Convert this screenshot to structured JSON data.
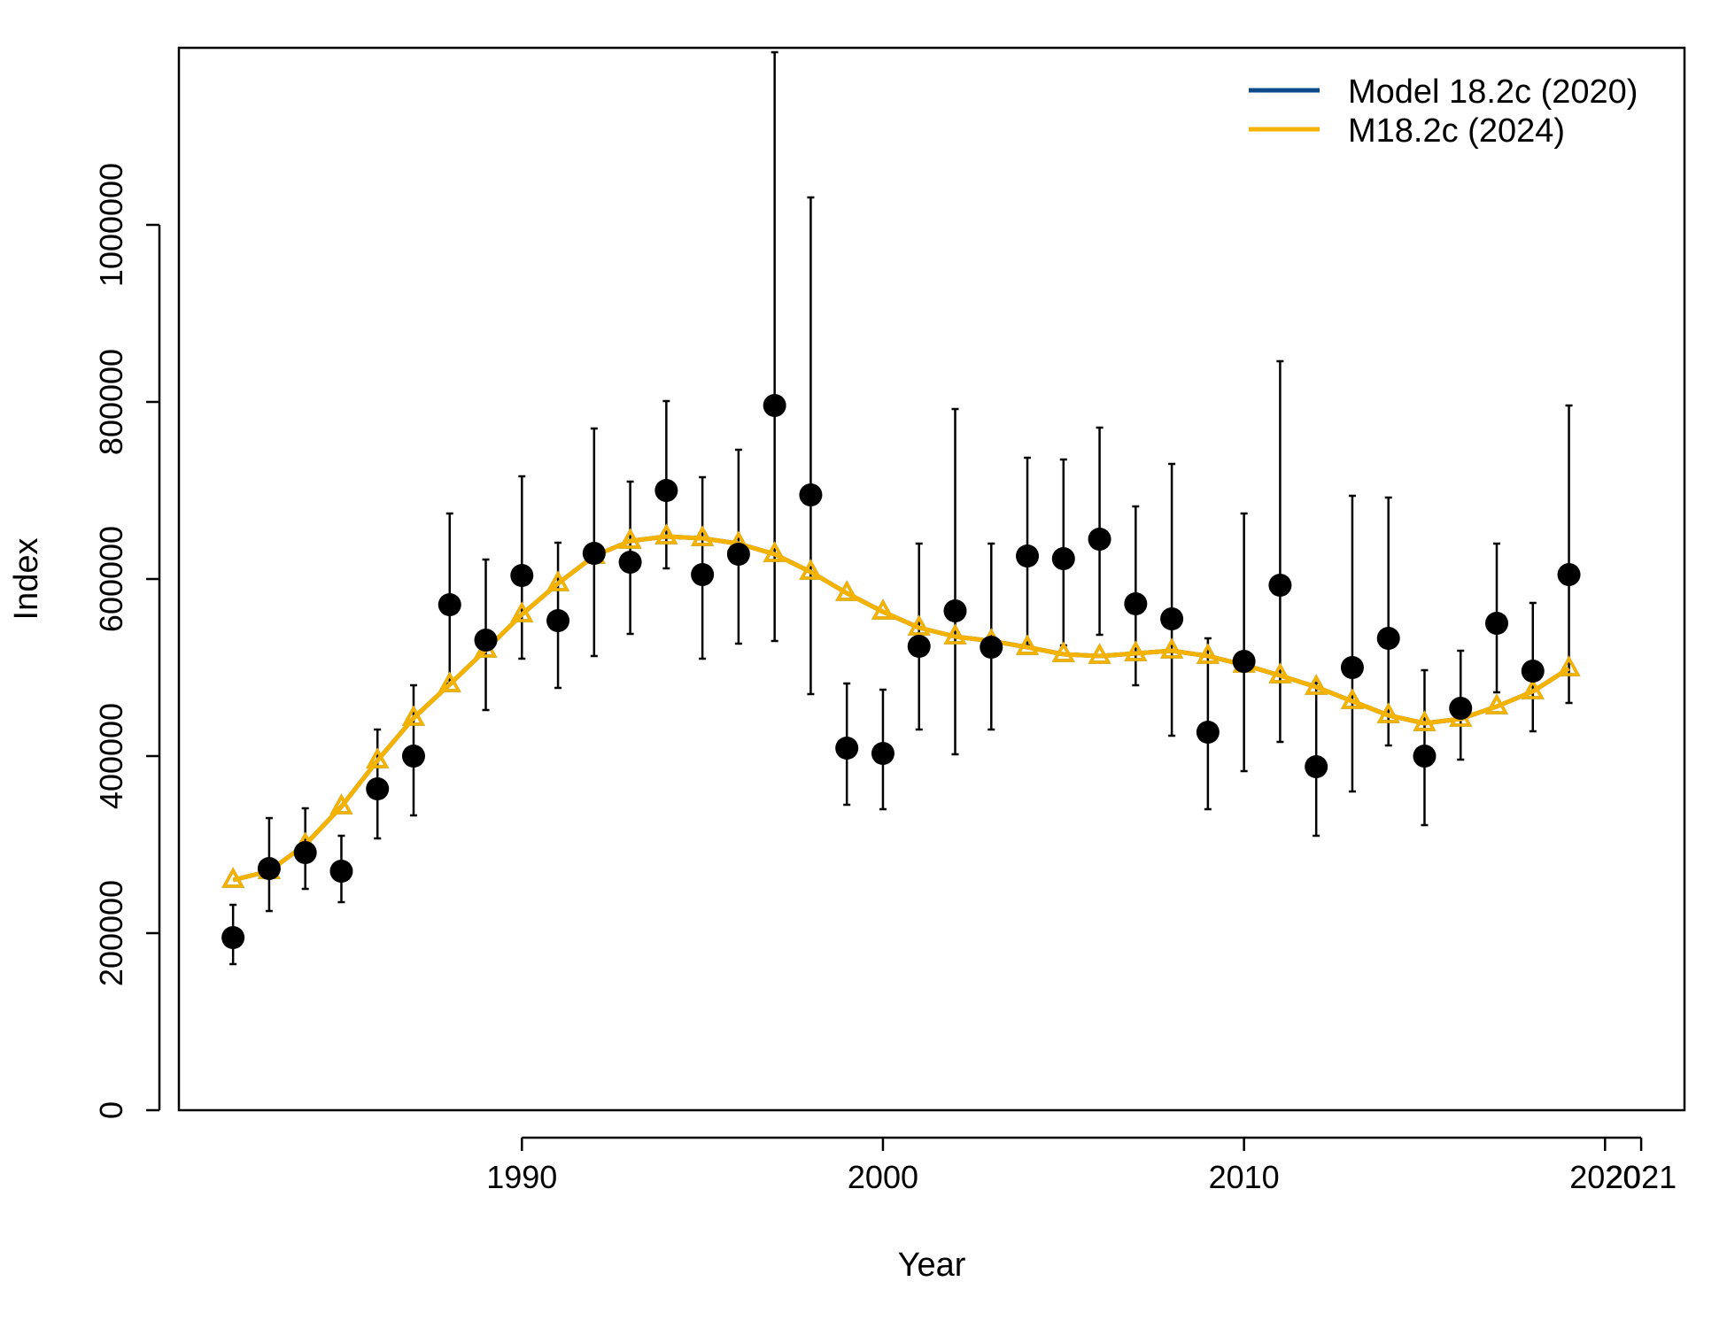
{
  "chart_data": {
    "type": "line",
    "xlabel": "Year",
    "ylabel": "Index",
    "xlim": [
      1980.5,
      2022.2
    ],
    "ylim": [
      0,
      1200000
    ],
    "x_ticks": [
      1990,
      2000,
      2010,
      2020,
      2021
    ],
    "x_tick_labels": [
      "1990",
      "2000",
      "2010",
      "2020",
      "2021"
    ],
    "y_ticks": [
      0,
      200000,
      400000,
      600000,
      800000,
      1000000
    ],
    "y_tick_labels": [
      "0",
      "200000",
      "400000",
      "600000",
      "800000",
      "1000000"
    ],
    "grid": false,
    "legend_position": "top-right",
    "observed": {
      "years": [
        1982,
        1983,
        1984,
        1985,
        1986,
        1987,
        1988,
        1989,
        1990,
        1991,
        1992,
        1993,
        1994,
        1995,
        1996,
        1997,
        1998,
        1999,
        2000,
        2001,
        2002,
        2003,
        2004,
        2005,
        2006,
        2007,
        2008,
        2009,
        2010,
        2011,
        2012,
        2013,
        2014,
        2015,
        2016,
        2017,
        2018,
        2019
      ],
      "values": [
        195000,
        273000,
        291000,
        270000,
        363000,
        400000,
        571000,
        531000,
        604000,
        553000,
        629000,
        619000,
        700000,
        605000,
        628000,
        796000,
        695000,
        409000,
        403000,
        524000,
        564000,
        523000,
        626000,
        623000,
        645000,
        572000,
        555000,
        427000,
        507000,
        593000,
        388000,
        500000,
        533000,
        400000,
        454000,
        550000,
        496000,
        605000
      ],
      "lower": [
        165000,
        225000,
        250000,
        235000,
        307000,
        333000,
        482000,
        452000,
        510000,
        477000,
        513000,
        538000,
        612000,
        510000,
        527000,
        530000,
        470000,
        345000,
        340000,
        430000,
        402000,
        430000,
        525000,
        525000,
        537000,
        480000,
        423000,
        340000,
        383000,
        416000,
        310000,
        360000,
        412000,
        322000,
        396000,
        472000,
        428000,
        460000
      ],
      "upper": [
        232000,
        330000,
        341000,
        310000,
        430000,
        480000,
        674000,
        622000,
        716000,
        641000,
        770000,
        710000,
        801000,
        715000,
        746000,
        1195000,
        1031000,
        482000,
        475000,
        640000,
        792000,
        640000,
        737000,
        735000,
        771000,
        682000,
        730000,
        533000,
        674000,
        846000,
        483000,
        694000,
        692000,
        497000,
        519000,
        640000,
        573000,
        796000
      ]
    },
    "series": [
      {
        "name": "Model 18.2c (2020)",
        "color": "#0b4a8b",
        "years": [
          1982,
          1983,
          1984,
          1985,
          1986,
          1987,
          1988,
          1989,
          1990,
          1991,
          1992,
          1993,
          1994,
          1995,
          1996,
          1997,
          1998,
          1999,
          2000,
          2001,
          2002,
          2003,
          2004,
          2005,
          2006,
          2007,
          2008,
          2009,
          2010,
          2011,
          2012,
          2013,
          2014,
          2015,
          2016,
          2017,
          2018,
          2019
        ],
        "values": [
          260000,
          270000,
          300000,
          343000,
          395000,
          443000,
          481000,
          520000,
          560000,
          595000,
          626000,
          643000,
          648000,
          646000,
          640000,
          628000,
          608000,
          584000,
          563000,
          545000,
          535000,
          530000,
          523000,
          515000,
          513000,
          516000,
          519000,
          513000,
          503000,
          491000,
          478000,
          462000,
          446000,
          437000,
          442000,
          456000,
          473000,
          499000
        ]
      },
      {
        "name": "M18.2c (2024)",
        "color": "#f5b300",
        "years": [
          1982,
          1983,
          1984,
          1985,
          1986,
          1987,
          1988,
          1989,
          1990,
          1991,
          1992,
          1993,
          1994,
          1995,
          1996,
          1997,
          1998,
          1999,
          2000,
          2001,
          2002,
          2003,
          2004,
          2005,
          2006,
          2007,
          2008,
          2009,
          2010,
          2011,
          2012,
          2013,
          2014,
          2015,
          2016,
          2017,
          2018,
          2019
        ],
        "values": [
          260000,
          270000,
          300000,
          343000,
          395000,
          443000,
          481000,
          520000,
          560000,
          595000,
          626000,
          643000,
          648000,
          646000,
          640000,
          628000,
          608000,
          584000,
          563000,
          545000,
          535000,
          530000,
          523000,
          515000,
          513000,
          516000,
          519000,
          513000,
          503000,
          491000,
          478000,
          462000,
          446000,
          437000,
          442000,
          456000,
          473000,
          499000
        ]
      }
    ]
  }
}
